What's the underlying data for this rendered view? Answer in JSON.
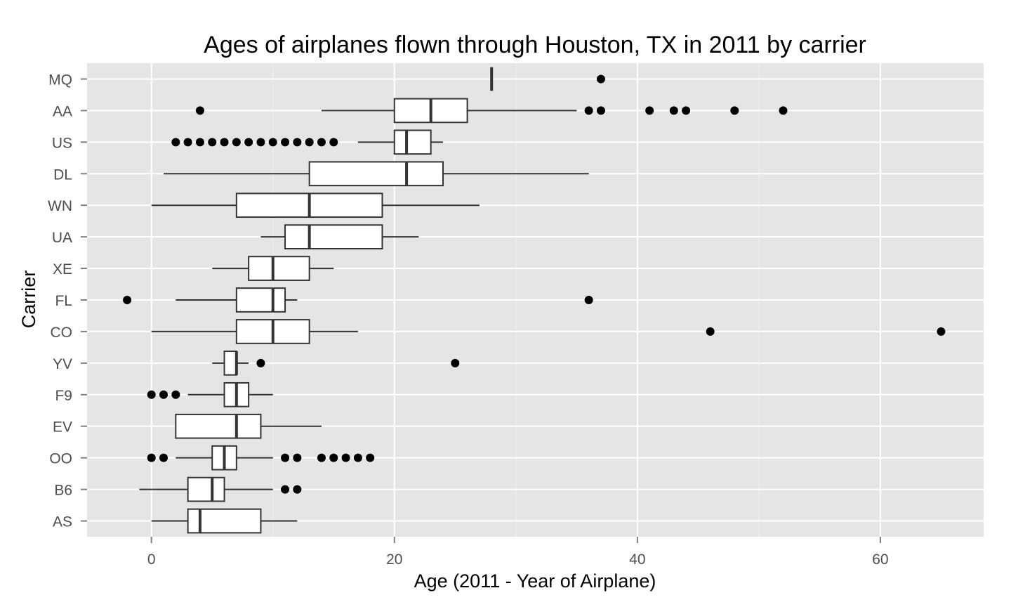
{
  "chart_data": {
    "type": "boxplot",
    "orientation": "horizontal",
    "title": "Ages of airplanes flown through Houston, TX in 2011 by carrier",
    "xlabel": "Age (2011 - Year of Airplane)",
    "ylabel": "Carrier",
    "xlim": [
      -5.3,
      68.5
    ],
    "x_ticks": [
      0,
      20,
      40,
      60
    ],
    "x_tick_labels": [
      "0",
      "20",
      "40",
      "60"
    ],
    "grid": true,
    "background": "#e5e5e5",
    "categories": [
      "AS",
      "B6",
      "OO",
      "EV",
      "F9",
      "YV",
      "CO",
      "FL",
      "XE",
      "UA",
      "WN",
      "DL",
      "US",
      "AA",
      "MQ"
    ],
    "boxes": [
      {
        "category": "AS",
        "whisker_low": 0,
        "q1": 3,
        "median": 4,
        "q3": 9,
        "whisker_high": 12,
        "outliers": []
      },
      {
        "category": "B6",
        "whisker_low": -1,
        "q1": 3,
        "median": 5,
        "q3": 6,
        "whisker_high": 10,
        "outliers": [
          11,
          12
        ]
      },
      {
        "category": "OO",
        "whisker_low": 2,
        "q1": 5,
        "median": 6,
        "q3": 7,
        "whisker_high": 10,
        "outliers": [
          0,
          1,
          11,
          12,
          14,
          15,
          16,
          17,
          18
        ]
      },
      {
        "category": "EV",
        "whisker_low": 2,
        "q1": 2,
        "median": 7,
        "q3": 9,
        "whisker_high": 14,
        "outliers": []
      },
      {
        "category": "F9",
        "whisker_low": 3,
        "q1": 6,
        "median": 7,
        "q3": 8,
        "whisker_high": 10,
        "outliers": [
          0,
          1,
          2
        ]
      },
      {
        "category": "YV",
        "whisker_low": 5,
        "q1": 6,
        "median": 7,
        "q3": 7,
        "whisker_high": 8,
        "outliers": [
          9,
          25
        ]
      },
      {
        "category": "CO",
        "whisker_low": 0,
        "q1": 7,
        "median": 10,
        "q3": 13,
        "whisker_high": 17,
        "outliers": [
          46,
          65
        ]
      },
      {
        "category": "FL",
        "whisker_low": 2,
        "q1": 7,
        "median": 10,
        "q3": 11,
        "whisker_high": 12,
        "outliers": [
          -2,
          36
        ]
      },
      {
        "category": "XE",
        "whisker_low": 5,
        "q1": 8,
        "median": 10,
        "q3": 13,
        "whisker_high": 15,
        "outliers": []
      },
      {
        "category": "UA",
        "whisker_low": 9,
        "q1": 11,
        "median": 13,
        "q3": 19,
        "whisker_high": 22,
        "outliers": []
      },
      {
        "category": "WN",
        "whisker_low": 0,
        "q1": 7,
        "median": 13,
        "q3": 19,
        "whisker_high": 27,
        "outliers": []
      },
      {
        "category": "DL",
        "whisker_low": 1,
        "q1": 13,
        "median": 21,
        "q3": 24,
        "whisker_high": 36,
        "outliers": []
      },
      {
        "category": "US",
        "whisker_low": 17,
        "q1": 20,
        "median": 21,
        "q3": 23,
        "whisker_high": 24,
        "outliers": [
          2,
          3,
          4,
          5,
          6,
          7,
          8,
          9,
          10,
          11,
          12,
          13,
          14,
          15
        ]
      },
      {
        "category": "AA",
        "whisker_low": 14,
        "q1": 20,
        "median": 23,
        "q3": 26,
        "whisker_high": 35,
        "outliers": [
          4,
          36,
          37,
          41,
          43,
          44,
          48,
          52
        ]
      },
      {
        "category": "MQ",
        "whisker_low": 28,
        "q1": 28,
        "median": 28,
        "q3": 28,
        "whisker_high": 28,
        "outliers": [
          37
        ]
      }
    ]
  }
}
